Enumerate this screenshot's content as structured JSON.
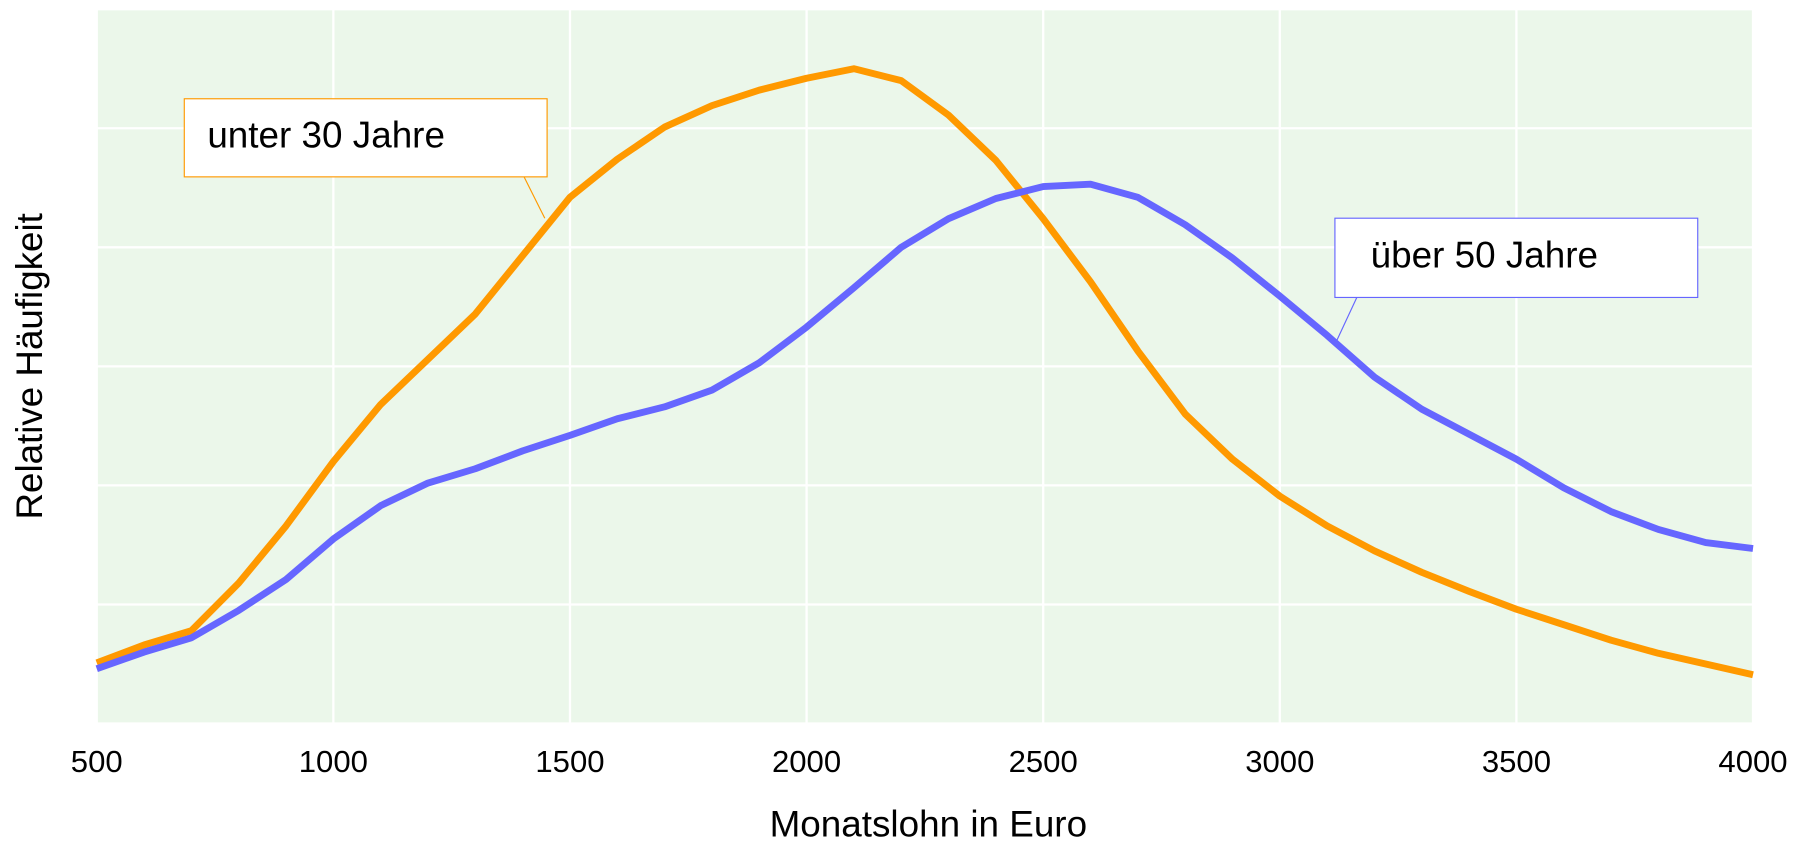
{
  "chart_data": {
    "type": "line",
    "x_label": "Monatslohn in Euro",
    "y_label": "Relative Häufigkeit",
    "x": [
      500,
      600,
      700,
      800,
      900,
      1000,
      1100,
      1200,
      1300,
      1400,
      1500,
      1600,
      1700,
      1800,
      1900,
      2000,
      2100,
      2200,
      2300,
      2400,
      2500,
      2600,
      2700,
      2800,
      2900,
      3000,
      3100,
      3200,
      3300,
      3400,
      3500,
      3600,
      3700,
      3800,
      3900,
      4000
    ],
    "series": [
      {
        "name": "unter 30 Jahre",
        "color": "#ff9900",
        "values": [
          0.51,
          0.66,
          0.78,
          1.18,
          1.66,
          2.2,
          2.68,
          3.06,
          3.44,
          3.93,
          4.42,
          4.74,
          5.01,
          5.19,
          5.32,
          5.42,
          5.5,
          5.4,
          5.11,
          4.73,
          4.24,
          3.71,
          3.13,
          2.6,
          2.22,
          1.91,
          1.66,
          1.45,
          1.27,
          1.11,
          0.96,
          0.83,
          0.7,
          0.59,
          0.5,
          0.41
        ]
      },
      {
        "name": "über 50 Jahre",
        "color": "#6666ff",
        "values": [
          0.46,
          0.6,
          0.72,
          0.95,
          1.21,
          1.55,
          1.83,
          2.02,
          2.14,
          2.29,
          2.42,
          2.56,
          2.66,
          2.8,
          3.03,
          3.33,
          3.66,
          4.0,
          4.24,
          4.41,
          4.51,
          4.53,
          4.42,
          4.19,
          3.91,
          3.59,
          3.26,
          2.91,
          2.64,
          2.43,
          2.22,
          1.98,
          1.78,
          1.63,
          1.52,
          1.47
        ]
      }
    ],
    "xlim": [
      500,
      4000
    ],
    "xticks": [
      500,
      1000,
      1500,
      2000,
      2500,
      3000,
      3500,
      4000
    ],
    "ylim": [
      0,
      6
    ],
    "yticks": [
      0,
      1,
      2,
      3,
      4,
      5,
      6
    ],
    "grid": true
  }
}
